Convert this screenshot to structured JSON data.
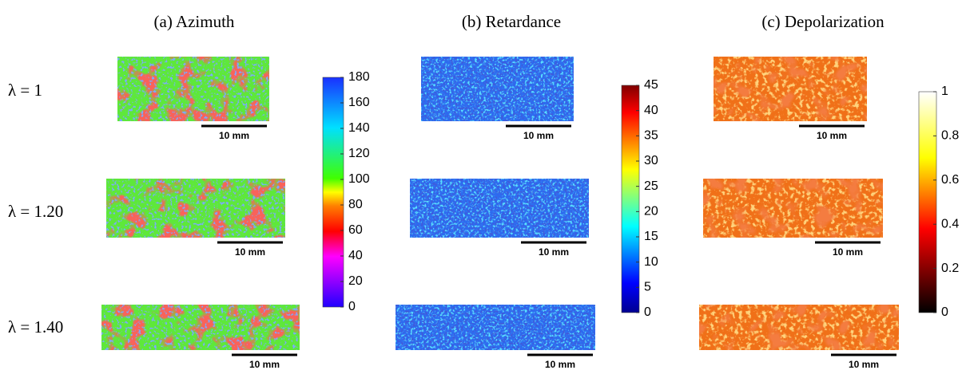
{
  "columns": [
    {
      "title": "(a) Azimuth",
      "colorbar": {
        "lim": [
          0,
          180
        ],
        "ticks": [
          0,
          20,
          40,
          60,
          80,
          100,
          120,
          140,
          160,
          180
        ]
      }
    },
    {
      "title": "(b) Retardance",
      "colorbar": {
        "lim": [
          0,
          45
        ],
        "ticks": [
          0,
          5,
          10,
          15,
          20,
          25,
          30,
          35,
          40,
          45
        ]
      }
    },
    {
      "title": "(c) Depolarization",
      "colorbar": {
        "lim": [
          0,
          1
        ],
        "ticks": [
          0,
          0.2,
          0.4,
          0.6,
          0.8,
          1
        ]
      }
    }
  ],
  "rows": [
    {
      "label": "λ = 1"
    },
    {
      "label": "λ = 1.20"
    },
    {
      "label": "λ = 1.40"
    }
  ],
  "scale_bar_label": "10 mm"
}
